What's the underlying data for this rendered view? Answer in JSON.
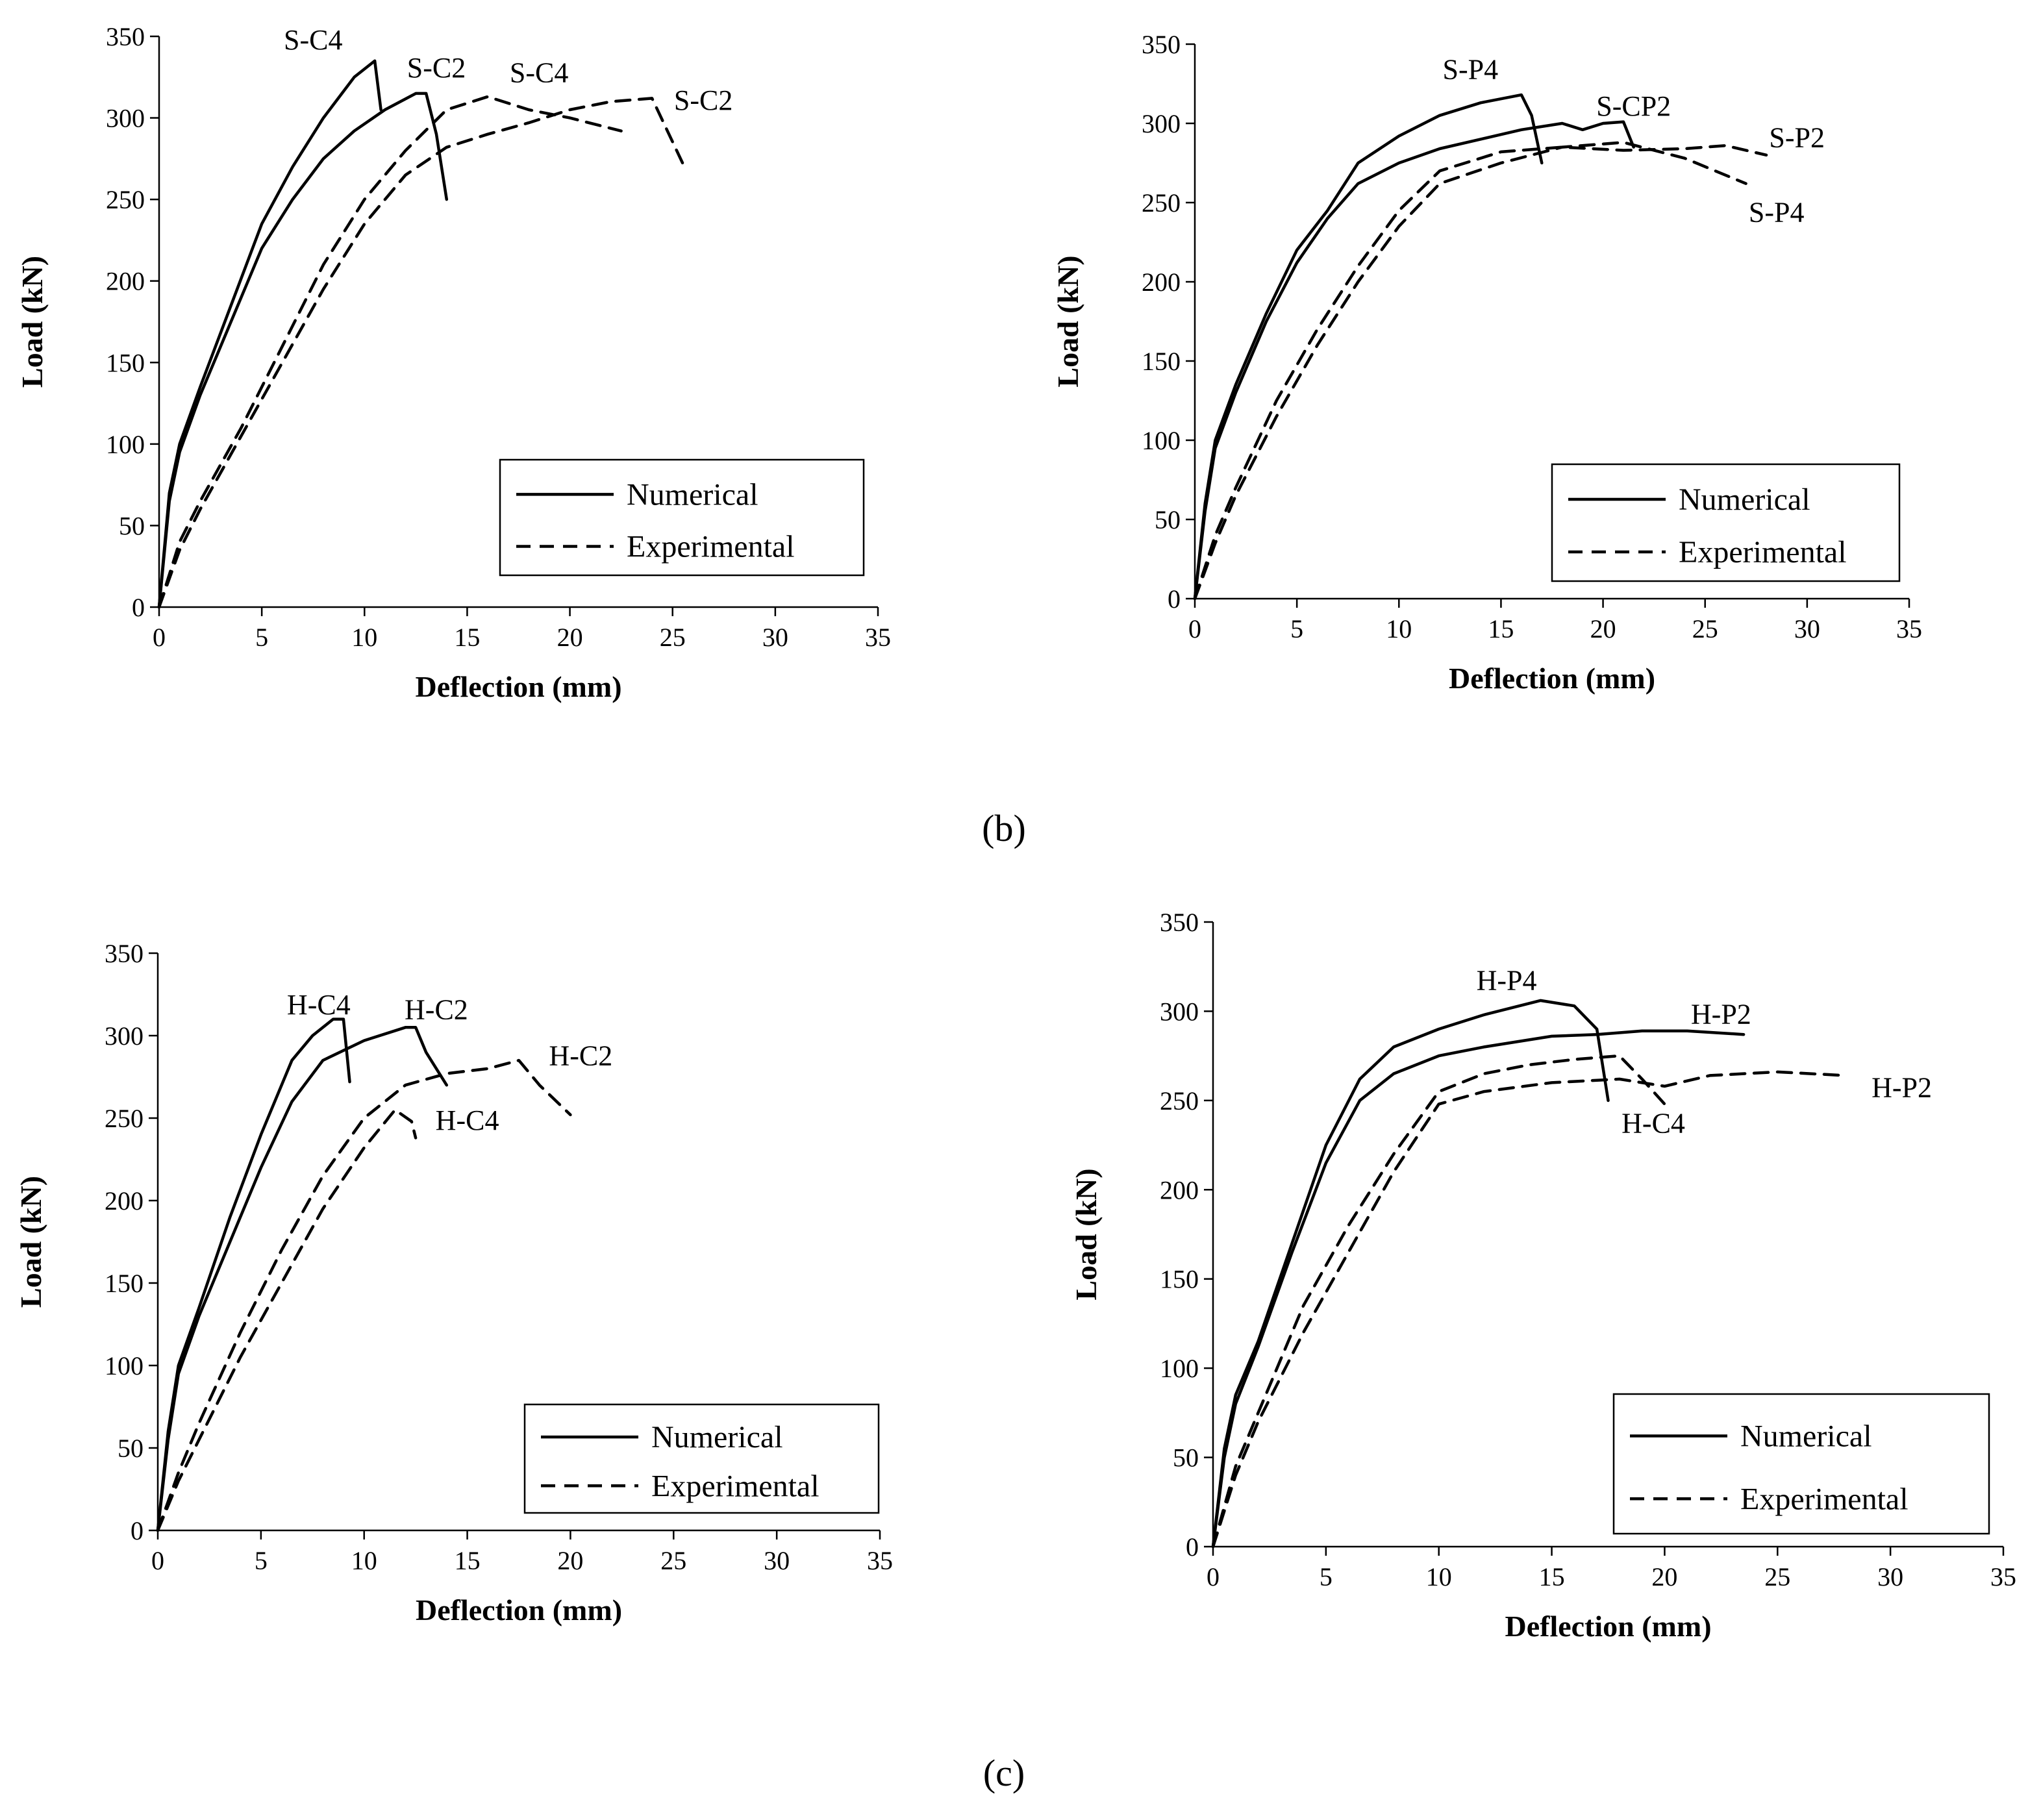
{
  "captions": {
    "b": "(b)",
    "c": "(c)"
  },
  "chart_data": [
    {
      "type": "line",
      "panel": "b-left",
      "xlabel": "Deflection (mm)",
      "ylabel": "Load (kN)",
      "xlim": [
        0,
        35
      ],
      "ylim": [
        0,
        350
      ],
      "xticks": [
        0,
        5,
        10,
        15,
        20,
        25,
        30,
        35
      ],
      "yticks": [
        0,
        50,
        100,
        150,
        200,
        250,
        300,
        350
      ],
      "legend": {
        "placement": "bottom-right",
        "numerical": "Numerical",
        "experimental": "Experimental"
      },
      "series": [
        {
          "name": "S-C4",
          "kind": "numerical",
          "x": [
            0,
            0.5,
            1,
            2,
            3.5,
            5,
            6.5,
            8,
            9.5,
            10.5,
            10.8
          ],
          "y": [
            0,
            70,
            100,
            135,
            185,
            235,
            270,
            300,
            325,
            335,
            305
          ]
        },
        {
          "name": "S-C2",
          "kind": "numerical",
          "x": [
            0,
            0.5,
            1,
            2,
            3.5,
            5,
            6.5,
            8,
            9.5,
            11,
            12.5,
            13,
            13.5,
            14
          ],
          "y": [
            0,
            65,
            95,
            130,
            175,
            220,
            250,
            275,
            292,
            305,
            315,
            315,
            290,
            250
          ]
        },
        {
          "name": "S-C4",
          "kind": "experimental",
          "x": [
            0,
            1,
            2,
            4,
            6,
            8,
            10,
            12,
            14,
            16,
            18,
            20,
            22.5
          ],
          "y": [
            0,
            40,
            65,
            110,
            160,
            210,
            250,
            280,
            305,
            313,
            305,
            300,
            292
          ]
        },
        {
          "name": "S-C2",
          "kind": "experimental",
          "x": [
            0,
            1,
            2,
            4,
            6,
            8,
            10,
            12,
            14,
            16,
            18,
            20,
            22,
            24,
            25.5
          ],
          "y": [
            0,
            35,
            60,
            105,
            150,
            195,
            235,
            265,
            282,
            290,
            297,
            305,
            310,
            312,
            272
          ]
        }
      ],
      "annotations": [
        "S-C4",
        "S-C2",
        "S-C4",
        "S-C2"
      ]
    },
    {
      "type": "line",
      "panel": "b-right",
      "xlabel": "Deflection (mm)",
      "ylabel": "Load (kN)",
      "xlim": [
        0,
        35
      ],
      "ylim": [
        0,
        350
      ],
      "xticks": [
        0,
        5,
        10,
        15,
        20,
        25,
        30,
        35
      ],
      "yticks": [
        0,
        50,
        100,
        150,
        200,
        250,
        300,
        350
      ],
      "legend": {
        "placement": "bottom-right",
        "numerical": "Numerical",
        "experimental": "Experimental"
      },
      "series": [
        {
          "name": "S-P4",
          "kind": "numerical",
          "x": [
            0,
            0.5,
            1,
            2,
            3.5,
            5,
            6.5,
            8,
            10,
            12,
            14,
            16,
            16.5,
            17
          ],
          "y": [
            0,
            60,
            100,
            135,
            180,
            220,
            245,
            275,
            292,
            305,
            313,
            318,
            305,
            275
          ]
        },
        {
          "name": "S-CP2",
          "kind": "numerical",
          "x": [
            0,
            0.5,
            1,
            2,
            3.5,
            5,
            6.5,
            8,
            10,
            12,
            14,
            16,
            18,
            19,
            20,
            21,
            21.5
          ],
          "y": [
            0,
            55,
            95,
            130,
            175,
            212,
            240,
            262,
            275,
            284,
            290,
            296,
            300,
            296,
            300,
            301,
            285
          ]
        },
        {
          "name": "S-P2",
          "kind": "experimental",
          "x": [
            0,
            1,
            2,
            4,
            6,
            8,
            10,
            12,
            15,
            18,
            21,
            24,
            26,
            28
          ],
          "y": [
            0,
            40,
            70,
            125,
            170,
            210,
            245,
            270,
            282,
            285,
            283,
            284,
            286,
            280
          ]
        },
        {
          "name": "S-P4",
          "kind": "experimental",
          "x": [
            0,
            1,
            2,
            4,
            6,
            8,
            10,
            12,
            15,
            18,
            21,
            24,
            27
          ],
          "y": [
            0,
            35,
            65,
            115,
            160,
            200,
            235,
            262,
            275,
            285,
            288,
            278,
            262
          ]
        }
      ],
      "annotations": [
        "S-P4",
        "S-CP2",
        "S-P2",
        "S-P4"
      ]
    },
    {
      "type": "line",
      "panel": "c-left",
      "xlabel": "Deflection (mm)",
      "ylabel": "Load (kN)",
      "xlim": [
        0,
        35
      ],
      "ylim": [
        0,
        350
      ],
      "xticks": [
        0,
        5,
        10,
        15,
        20,
        25,
        30,
        35
      ],
      "yticks": [
        0,
        50,
        100,
        150,
        200,
        250,
        300,
        350
      ],
      "legend": {
        "placement": "bottom-right",
        "numerical": "Numerical",
        "experimental": "Experimental"
      },
      "series": [
        {
          "name": "H-C4",
          "kind": "numerical",
          "x": [
            0,
            0.5,
            1,
            2,
            3.5,
            5,
            6.5,
            7.5,
            8.5,
            9,
            9.3
          ],
          "y": [
            0,
            60,
            100,
            135,
            190,
            240,
            285,
            300,
            310,
            310,
            272
          ]
        },
        {
          "name": "H-C2",
          "kind": "numerical",
          "x": [
            0,
            0.5,
            1,
            2,
            3.5,
            5,
            6.5,
            8,
            10,
            12,
            12.5,
            13,
            14
          ],
          "y": [
            0,
            55,
            95,
            130,
            175,
            220,
            260,
            285,
            297,
            305,
            305,
            290,
            270
          ]
        },
        {
          "name": "H-C2",
          "kind": "experimental",
          "x": [
            0,
            1,
            2,
            4,
            6,
            8,
            10,
            12,
            14,
            16,
            17.5,
            18.5,
            20
          ],
          "y": [
            0,
            35,
            65,
            120,
            170,
            215,
            250,
            270,
            277,
            280,
            285,
            270,
            252
          ]
        },
        {
          "name": "H-C4",
          "kind": "experimental",
          "x": [
            0,
            1,
            2,
            4,
            6,
            8,
            10,
            11.5,
            12.3,
            12.5
          ],
          "y": [
            0,
            30,
            55,
            105,
            150,
            195,
            232,
            255,
            248,
            238
          ]
        }
      ],
      "annotations": [
        "H-C4",
        "H-C2",
        "H-C2",
        "H-C4"
      ]
    },
    {
      "type": "line",
      "panel": "c-right",
      "xlabel": "Deflection (mm)",
      "ylabel": "Load (kN)",
      "xlim": [
        0,
        35
      ],
      "ylim": [
        0,
        350
      ],
      "xticks": [
        0,
        5,
        10,
        15,
        20,
        25,
        30,
        35
      ],
      "yticks": [
        0,
        50,
        100,
        150,
        200,
        250,
        300,
        350
      ],
      "legend": {
        "placement": "bottom-right",
        "numerical": "Numerical",
        "experimental": "Experimental"
      },
      "series": [
        {
          "name": "H-P4",
          "kind": "numerical",
          "x": [
            0,
            0.5,
            1,
            2,
            3.5,
            5,
            6.5,
            8,
            10,
            12,
            14.5,
            16,
            17,
            17.5
          ],
          "y": [
            0,
            55,
            85,
            115,
            170,
            225,
            262,
            280,
            290,
            298,
            306,
            303,
            290,
            250
          ]
        },
        {
          "name": "H-P2",
          "kind": "numerical",
          "x": [
            0,
            0.5,
            1,
            2,
            3.5,
            5,
            6.5,
            8,
            10,
            12,
            15,
            17,
            19,
            21,
            23.5
          ],
          "y": [
            0,
            50,
            80,
            112,
            165,
            215,
            250,
            265,
            275,
            280,
            286,
            287,
            289,
            289,
            287
          ]
        },
        {
          "name": "H-C4",
          "kind": "experimental",
          "x": [
            0,
            1,
            2,
            4,
            6,
            8,
            10,
            12,
            14,
            16,
            18,
            19,
            20
          ],
          "y": [
            0,
            45,
            75,
            135,
            180,
            220,
            255,
            265,
            270,
            273,
            275,
            262,
            248
          ]
        },
        {
          "name": "H-P2",
          "kind": "experimental",
          "x": [
            0,
            1,
            2,
            4,
            6,
            8,
            10,
            12,
            15,
            18,
            20,
            22,
            25,
            28
          ],
          "y": [
            0,
            40,
            70,
            120,
            165,
            210,
            248,
            255,
            260,
            262,
            258,
            264,
            266,
            264
          ]
        }
      ],
      "annotations": [
        "H-P4",
        "H-P2",
        "H-C4",
        "H-P2"
      ]
    }
  ]
}
